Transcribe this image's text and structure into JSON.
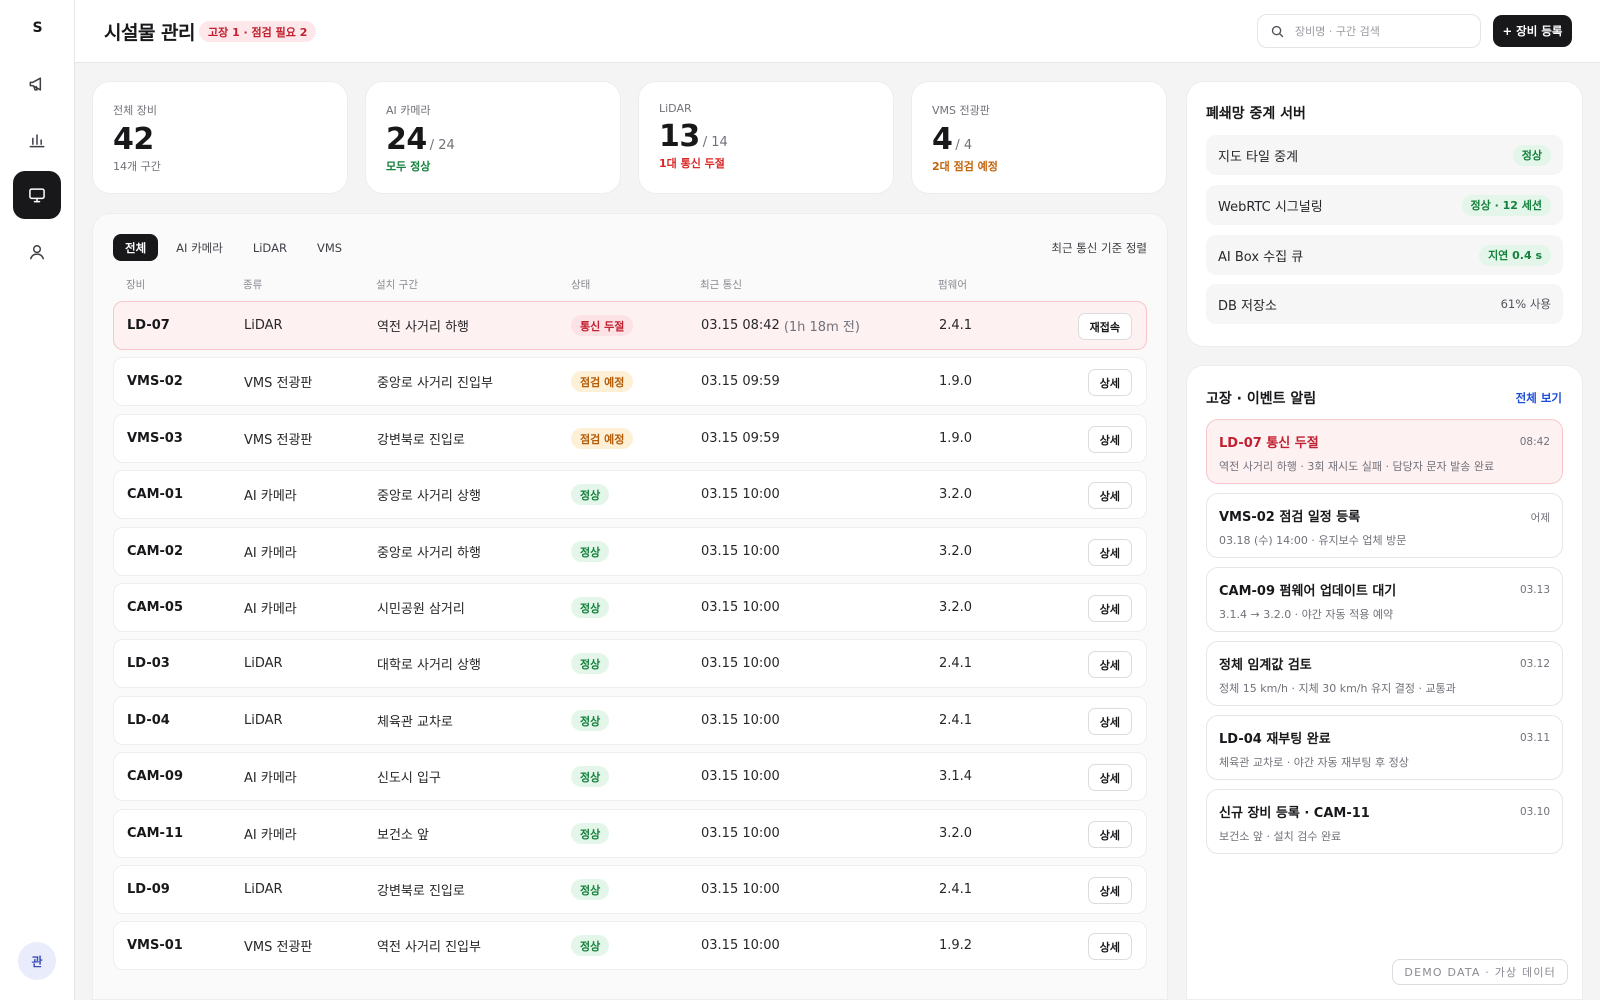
{
  "sidebar": {
    "logo": "S",
    "items": [
      {
        "name": "announcements",
        "icon": "megaphone-icon",
        "active": false
      },
      {
        "name": "analytics",
        "icon": "bar-chart-icon",
        "active": false
      },
      {
        "name": "facilities",
        "icon": "monitor-icon",
        "active": true
      },
      {
        "name": "users",
        "icon": "user-icon",
        "active": false
      }
    ],
    "avatar": "관"
  },
  "header": {
    "title": "시설물 관리",
    "badge": "고장 1 · 점검 필요 2",
    "search_placeholder": "장비명 · 구간 검색",
    "add_button": "+ 장비 등록"
  },
  "kpis": [
    {
      "label": "전체 장비",
      "value": "42",
      "total": "",
      "sub": "14개 구간",
      "tone": "muted"
    },
    {
      "label": "AI 카메라",
      "value": "24",
      "total": "/ 24",
      "sub": "모두 정상",
      "tone": "green"
    },
    {
      "label": "LiDAR",
      "value": "13",
      "total": "/ 14",
      "sub": "1대 통신 두절",
      "tone": "red"
    },
    {
      "label": "VMS 전광판",
      "value": "4",
      "total": "/ 4",
      "sub": "2대 점검 예정",
      "tone": "orange"
    }
  ],
  "table": {
    "tabs": [
      {
        "label": "전체",
        "active": true
      },
      {
        "label": "AI 카메라",
        "active": false
      },
      {
        "label": "LiDAR",
        "active": false
      },
      {
        "label": "VMS",
        "active": false
      }
    ],
    "sort_label": "최근 통신 기준 정렬",
    "columns": [
      "장비",
      "종류",
      "설치 구간",
      "상태",
      "최근 통신",
      "펌웨어"
    ],
    "rows": [
      {
        "id": "LD-07",
        "type": "LiDAR",
        "location": "역전 사거리 하행",
        "status": "통신 두절",
        "status_tone": "err",
        "time": "03.15 08:42",
        "relative": "(1h 18m 전)",
        "firmware": "2.4.1",
        "action": "재접속",
        "alert": true
      },
      {
        "id": "VMS-02",
        "type": "VMS 전광판",
        "location": "중앙로 사거리 진입부",
        "status": "점검 예정",
        "status_tone": "warn",
        "time": "03.15 09:59",
        "relative": "",
        "firmware": "1.9.0",
        "action": "상세",
        "alert": false
      },
      {
        "id": "VMS-03",
        "type": "VMS 전광판",
        "location": "강변북로 진입로",
        "status": "점검 예정",
        "status_tone": "warn",
        "time": "03.15 09:59",
        "relative": "",
        "firmware": "1.9.0",
        "action": "상세",
        "alert": false
      },
      {
        "id": "CAM-01",
        "type": "AI 카메라",
        "location": "중앙로 사거리 상행",
        "status": "정상",
        "status_tone": "ok",
        "time": "03.15 10:00",
        "relative": "",
        "firmware": "3.2.0",
        "action": "상세",
        "alert": false
      },
      {
        "id": "CAM-02",
        "type": "AI 카메라",
        "location": "중앙로 사거리 하행",
        "status": "정상",
        "status_tone": "ok",
        "time": "03.15 10:00",
        "relative": "",
        "firmware": "3.2.0",
        "action": "상세",
        "alert": false
      },
      {
        "id": "CAM-05",
        "type": "AI 카메라",
        "location": "시민공원 삼거리",
        "status": "정상",
        "status_tone": "ok",
        "time": "03.15 10:00",
        "relative": "",
        "firmware": "3.2.0",
        "action": "상세",
        "alert": false
      },
      {
        "id": "LD-03",
        "type": "LiDAR",
        "location": "대학로 사거리 상행",
        "status": "정상",
        "status_tone": "ok",
        "time": "03.15 10:00",
        "relative": "",
        "firmware": "2.4.1",
        "action": "상세",
        "alert": false
      },
      {
        "id": "LD-04",
        "type": "LiDAR",
        "location": "체육관 교차로",
        "status": "정상",
        "status_tone": "ok",
        "time": "03.15 10:00",
        "relative": "",
        "firmware": "2.4.1",
        "action": "상세",
        "alert": false
      },
      {
        "id": "CAM-09",
        "type": "AI 카메라",
        "location": "신도시 입구",
        "status": "정상",
        "status_tone": "ok",
        "time": "03.15 10:00",
        "relative": "",
        "firmware": "3.1.4",
        "action": "상세",
        "alert": false
      },
      {
        "id": "CAM-11",
        "type": "AI 카메라",
        "location": "보건소 앞",
        "status": "정상",
        "status_tone": "ok",
        "time": "03.15 10:00",
        "relative": "",
        "firmware": "3.2.0",
        "action": "상세",
        "alert": false
      },
      {
        "id": "LD-09",
        "type": "LiDAR",
        "location": "강변북로 진입로",
        "status": "정상",
        "status_tone": "ok",
        "time": "03.15 10:00",
        "relative": "",
        "firmware": "2.4.1",
        "action": "상세",
        "alert": false
      },
      {
        "id": "VMS-01",
        "type": "VMS 전광판",
        "location": "역전 사거리 진입부",
        "status": "정상",
        "status_tone": "ok",
        "time": "03.15 10:00",
        "relative": "",
        "firmware": "1.9.2",
        "action": "상세",
        "alert": false
      }
    ]
  },
  "relay": {
    "title": "폐쇄망 중계 서버",
    "items": [
      {
        "name": "지도 타일 중계",
        "value": "정상",
        "style": "pill"
      },
      {
        "name": "WebRTC 시그널링",
        "value": "정상 · 12 세션",
        "style": "pill"
      },
      {
        "name": "AI Box 수집 큐",
        "value": "지연 0.4 s",
        "style": "pill"
      },
      {
        "name": "DB 저장소",
        "value": "61% 사용",
        "style": "plain"
      }
    ]
  },
  "events": {
    "title": "고장 · 이벤트 알림",
    "see_all": "전체 보기",
    "items": [
      {
        "title": "LD-07 통신 두절",
        "time": "08:42",
        "desc": "역전 사거리 하행 · 3회 재시도 실패 · 담당자 문자 발송 완료",
        "alert": true
      },
      {
        "title": "VMS-02 점검 일정 등록",
        "time": "어제",
        "desc": "03.18 (수) 14:00 · 유지보수 업체 방문",
        "alert": false
      },
      {
        "title": "CAM-09 펌웨어 업데이트 대기",
        "time": "03.13",
        "desc": "3.1.4 → 3.2.0 · 야간 자동 적용 예약",
        "alert": false
      },
      {
        "title": "정체 임계값 검토",
        "time": "03.12",
        "desc": "정체 15 km/h · 지체 30 km/h 유지 결정 · 교통과",
        "alert": false
      },
      {
        "title": "LD-04 재부팅 완료",
        "time": "03.11",
        "desc": "체육관 교차로 · 야간 자동 재부팅 후 정상",
        "alert": false
      },
      {
        "title": "신규 장비 등록 · CAM-11",
        "time": "03.10",
        "desc": "보건소 앞 · 설치 검수 완료",
        "alert": false
      }
    ],
    "demo_badge": "DEMO DATA · 가상 데이터"
  }
}
